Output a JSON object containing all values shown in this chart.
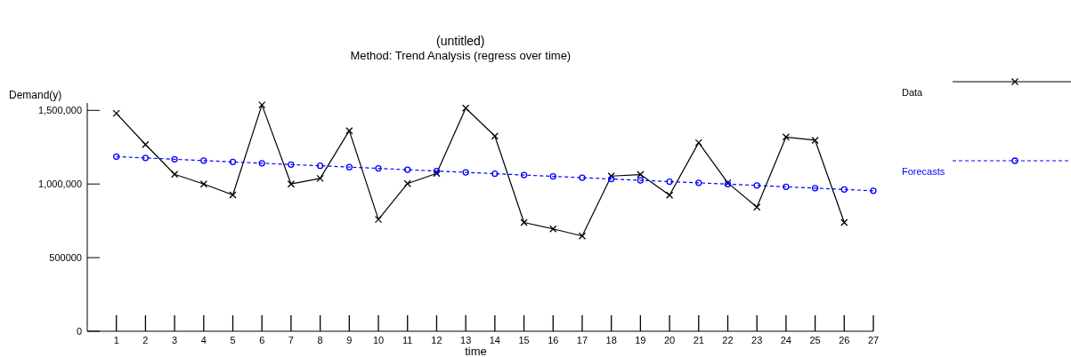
{
  "chart_data": {
    "type": "line",
    "title": "(untitled)",
    "subtitle": "Method: Trend Analysis (regress over time)",
    "xlabel": "time",
    "ylabel": "Demand(y)",
    "xlim": [
      0,
      27
    ],
    "xticks": [
      1,
      2,
      3,
      4,
      5,
      6,
      7,
      8,
      9,
      10,
      11,
      12,
      13,
      14,
      15,
      16,
      17,
      18,
      19,
      20,
      21,
      22,
      23,
      24,
      25,
      26,
      27
    ],
    "ylim": [
      0,
      1550000
    ],
    "yticks": [
      0,
      {
        "value": 500000,
        "label": "500000"
      },
      {
        "value": 1000000,
        "label": "1,000,000"
      },
      {
        "value": 1500000,
        "label": "1,500,000"
      }
    ],
    "grid": false,
    "legend": "top right",
    "series": [
      {
        "name": "Data",
        "color": "#000000",
        "marker": "cross",
        "line_style": "solid",
        "x": [
          1,
          2,
          3,
          4,
          5,
          6,
          7,
          8,
          9,
          10,
          11,
          12,
          13,
          14,
          15,
          16,
          17,
          18,
          19,
          20,
          21,
          22,
          23,
          24,
          25,
          26
        ],
        "values": [
          1480000,
          1268000,
          1066000,
          1000000,
          926000,
          1537000,
          1000000,
          1038000,
          1362000,
          759000,
          1003000,
          1072000,
          1515000,
          1325000,
          739000,
          695000,
          647000,
          1054000,
          1064000,
          924000,
          1281000,
          1008000,
          843000,
          1319000,
          1297000,
          739000
        ]
      },
      {
        "name": "Forecasts",
        "color": "#0000ff",
        "marker": "circle",
        "line_style": "dashed",
        "x": [
          1,
          2,
          3,
          4,
          5,
          6,
          7,
          8,
          9,
          10,
          11,
          12,
          13,
          14,
          15,
          16,
          17,
          18,
          19,
          20,
          21,
          22,
          23,
          24,
          25,
          26,
          27
        ],
        "values": [
          1186000,
          1177000,
          1168000,
          1159000,
          1150000,
          1141000,
          1132000,
          1124000,
          1115000,
          1106000,
          1097000,
          1088000,
          1079000,
          1070000,
          1061000,
          1052000,
          1043000,
          1034000,
          1025000,
          1016000,
          1008000,
          999000,
          990000,
          981000,
          972000,
          963000,
          954000
        ]
      }
    ]
  }
}
